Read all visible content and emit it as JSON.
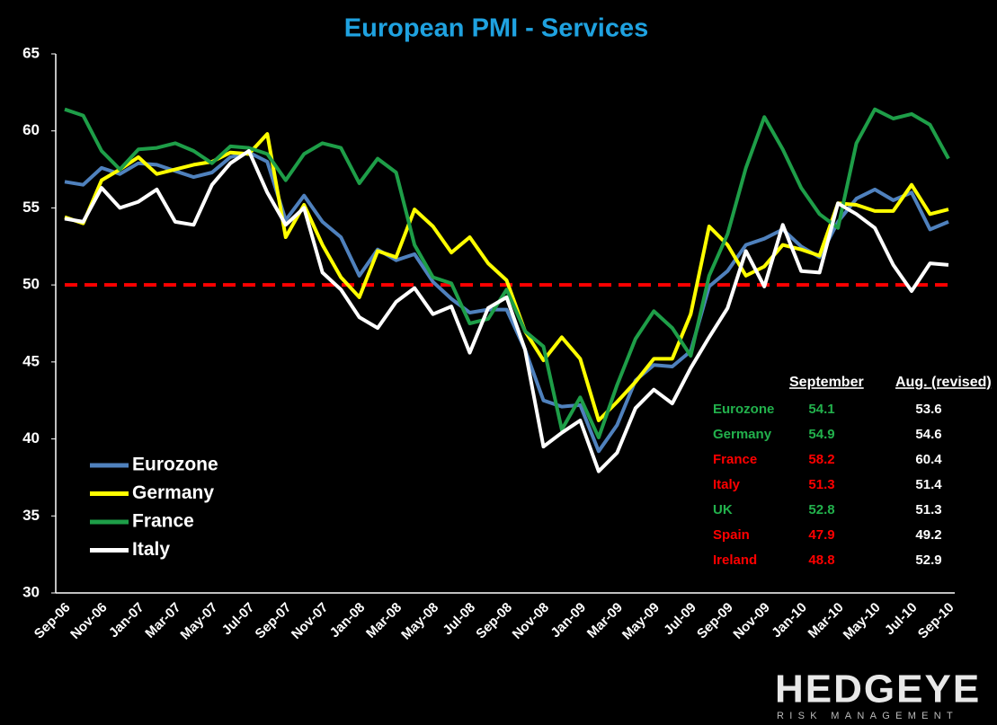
{
  "chart_data": {
    "type": "line",
    "title": "European PMI - Services",
    "categories": [
      "Sep-06",
      null,
      "Nov-06",
      null,
      "Jan-07",
      null,
      "Mar-07",
      null,
      "May-07",
      null,
      "Jul-07",
      null,
      "Sep-07",
      null,
      "Nov-07",
      null,
      "Jan-08",
      null,
      "Mar-08",
      null,
      "May-08",
      null,
      "Jul-08",
      null,
      "Sep-08",
      null,
      "Nov-08",
      null,
      "Jan-09",
      null,
      "Mar-09",
      null,
      "May-09",
      null,
      "Jul-09",
      null,
      "Sep-09",
      null,
      "Nov-09",
      null,
      "Jan-10",
      null,
      "Mar-10",
      null,
      "May-10",
      null,
      "Jul-10",
      null,
      "Sep-10"
    ],
    "series": [
      {
        "name": "Eurozone",
        "color": "#4f81bd",
        "values": [
          56.7,
          56.5,
          57.6,
          57.2,
          57.9,
          57.8,
          57.4,
          57.0,
          57.3,
          58.3,
          58.6,
          58.0,
          54.2,
          55.8,
          54.1,
          53.1,
          50.6,
          52.3,
          51.6,
          52.0,
          50.2,
          49.1,
          48.2,
          48.4,
          48.4,
          45.8,
          42.5,
          42.1,
          42.2,
          39.2,
          40.9,
          43.8,
          44.8,
          44.7,
          45.7,
          49.9,
          50.9,
          52.6,
          53.0,
          53.6,
          52.5,
          51.8,
          54.1,
          55.6,
          56.2,
          55.5,
          56.0,
          53.6,
          54.1
        ]
      },
      {
        "name": "Germany",
        "color": "#ffff00",
        "values": [
          54.4,
          54.0,
          56.8,
          57.5,
          58.3,
          57.2,
          57.5,
          57.8,
          58.0,
          58.6,
          58.5,
          59.8,
          53.1,
          55.2,
          52.6,
          50.5,
          49.2,
          52.2,
          51.8,
          54.9,
          53.8,
          52.1,
          53.1,
          51.4,
          50.3,
          47.0,
          45.1,
          46.6,
          45.2,
          41.2,
          42.4,
          43.7,
          45.2,
          45.2,
          48.1,
          53.8,
          52.6,
          50.6,
          51.2,
          52.6,
          52.3,
          51.9,
          55.3,
          55.2,
          54.8,
          54.8,
          56.5,
          54.6,
          54.9
        ]
      },
      {
        "name": "France",
        "color": "#1e9e48",
        "values": [
          61.4,
          61.0,
          58.7,
          57.5,
          58.8,
          58.9,
          59.2,
          58.7,
          57.9,
          59.0,
          58.9,
          58.5,
          56.8,
          58.5,
          59.2,
          58.9,
          56.6,
          58.2,
          57.3,
          52.6,
          50.5,
          50.1,
          47.5,
          47.8,
          49.7,
          47.0,
          46.0,
          40.6,
          42.7,
          40.1,
          43.5,
          46.5,
          48.3,
          47.2,
          45.4,
          50.6,
          53.3,
          57.6,
          60.9,
          58.8,
          56.3,
          54.6,
          53.7,
          59.2,
          61.4,
          60.8,
          61.1,
          60.4,
          58.2
        ]
      },
      {
        "name": "Italy",
        "color": "#ffffff",
        "values": [
          54.3,
          54.1,
          56.3,
          55.0,
          55.4,
          56.2,
          54.1,
          53.9,
          56.5,
          57.9,
          58.7,
          56.0,
          53.9,
          55.0,
          50.8,
          49.7,
          47.9,
          47.2,
          48.9,
          49.8,
          48.1,
          48.6,
          45.6,
          48.5,
          49.2,
          45.8,
          39.5,
          40.4,
          41.2,
          37.9,
          39.1,
          42.0,
          43.2,
          42.3,
          44.6,
          46.6,
          48.5,
          52.2,
          49.9,
          53.9,
          50.9,
          50.8,
          55.3,
          54.6,
          53.7,
          51.3,
          49.6,
          51.4,
          51.3
        ]
      }
    ],
    "ylim": [
      30,
      65
    ],
    "yticks": [
      30,
      35,
      40,
      45,
      50,
      55,
      60,
      65
    ],
    "reference_line": {
      "value": 50,
      "color": "#ff0000"
    },
    "legend": "lower left",
    "grid": false
  },
  "table": {
    "columns": [
      "September",
      "Aug. (revised)"
    ],
    "rows": [
      {
        "name": "Eurozone",
        "september": 54.1,
        "august": 53.6,
        "color": "#22b14c"
      },
      {
        "name": "Germany",
        "september": 54.9,
        "august": 54.6,
        "color": "#22b14c"
      },
      {
        "name": "France",
        "september": 58.2,
        "august": 60.4,
        "color": "#ff0000"
      },
      {
        "name": "Italy",
        "september": 51.3,
        "august": 51.4,
        "color": "#ff0000"
      },
      {
        "name": "UK",
        "september": 52.8,
        "august": 51.3,
        "color": "#22b14c"
      },
      {
        "name": "Spain",
        "september": 47.9,
        "august": 49.2,
        "color": "#ff0000"
      },
      {
        "name": "Ireland",
        "september": 48.8,
        "august": 52.9,
        "color": "#ff0000"
      }
    ]
  },
  "logo": {
    "name": "HEDGEYE",
    "tagline": "RISK MANAGEMENT"
  }
}
